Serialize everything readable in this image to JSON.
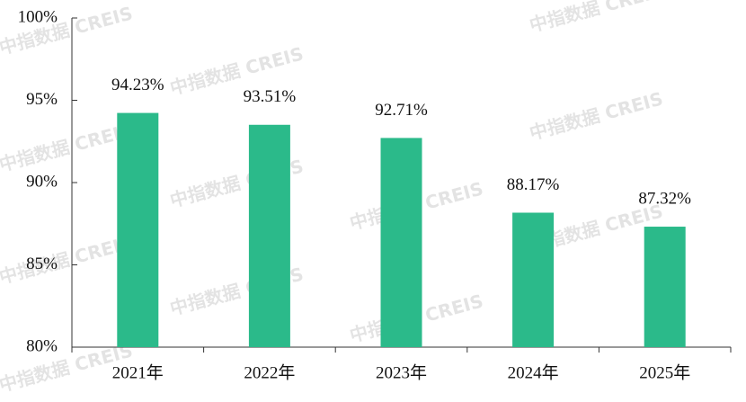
{
  "chart_data": {
    "type": "bar",
    "categories": [
      "2021年",
      "2022年",
      "2023年",
      "2024年",
      "2025年"
    ],
    "values": [
      94.23,
      93.51,
      92.71,
      88.17,
      87.32
    ],
    "value_labels": [
      "94.23%",
      "93.51%",
      "92.71%",
      "88.17%",
      "87.32%"
    ],
    "color": "#2bba8a",
    "ylim": [
      80,
      100
    ],
    "yticks": [
      {
        "value": 80,
        "label": "80%"
      },
      {
        "value": 85,
        "label": "85%"
      },
      {
        "value": 90,
        "label": "90%"
      },
      {
        "value": 95,
        "label": "95%"
      },
      {
        "value": 100,
        "label": "100%"
      }
    ],
    "watermark": "中指数据 CREIS"
  }
}
